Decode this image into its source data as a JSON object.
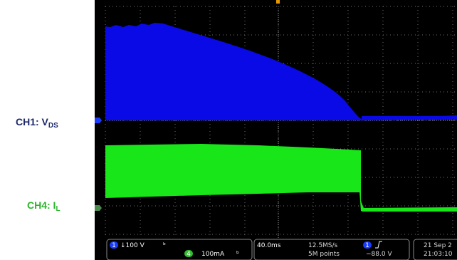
{
  "labels": {
    "ch1": {
      "main": "CH1: V",
      "sub": "DS"
    },
    "ch4": {
      "main": "CH4: I",
      "sub": "L"
    }
  },
  "status_bar": {
    "ch1_number": "1",
    "ch1_scale": "↓100 V",
    "ch1_bw_icon": "bw-icon",
    "ch4_number": "4",
    "ch4_scale": "100mA",
    "ch4_bw_icon": "bw-icon",
    "timebase": "40.0ms",
    "sample_rate": "12.5MS/s",
    "record_length": "5M points",
    "trigger_channel": "1",
    "trigger_slope_icon": "rising-edge-icon",
    "trigger_level": "−88.0 V",
    "date": "21 Sep 2",
    "time": "21:03:10"
  },
  "colors": {
    "ch1": "#0a0ae6",
    "ch4": "#19e619",
    "grid": "#6f6f6f",
    "trigger_marker": "#e69a00",
    "background": "#000000"
  }
}
